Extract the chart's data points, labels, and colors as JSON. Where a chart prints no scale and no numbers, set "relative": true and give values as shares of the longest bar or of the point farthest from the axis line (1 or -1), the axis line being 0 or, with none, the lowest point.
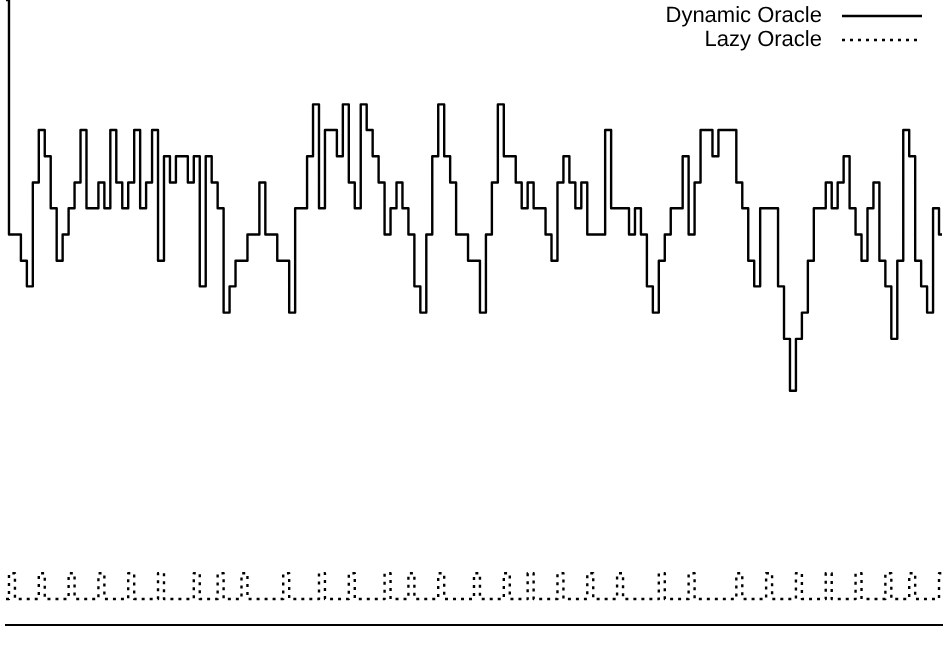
{
  "chart_data": {
    "type": "step",
    "relative": true,
    "legend": "top right",
    "grid": false,
    "categories": [
      null,
      null,
      null,
      null,
      null,
      null,
      null,
      null,
      null,
      null,
      null,
      null,
      null,
      null,
      null,
      null,
      null,
      null,
      null,
      null,
      null,
      null,
      null,
      null,
      null,
      null,
      null,
      null,
      null,
      null,
      null,
      null,
      null,
      null,
      null,
      null,
      null,
      null,
      null,
      null,
      null,
      null,
      null,
      null,
      null,
      null,
      null,
      null,
      null,
      null,
      null,
      null,
      null,
      null,
      null,
      null,
      null,
      null,
      null,
      null,
      null,
      null,
      null,
      null,
      null,
      null,
      null,
      null,
      null,
      null,
      null,
      null,
      null,
      null,
      null,
      null,
      null,
      null,
      null,
      null,
      null,
      null,
      null,
      null,
      null,
      null,
      null,
      null,
      null,
      null,
      null,
      null,
      null,
      null,
      null,
      null,
      null,
      null,
      null,
      null,
      null,
      null,
      null,
      null,
      null,
      null,
      null,
      null,
      null,
      null,
      null,
      null,
      null,
      null,
      null,
      null,
      null,
      null,
      null,
      null,
      null,
      null,
      null,
      null,
      null,
      null,
      null,
      null,
      null,
      null,
      null,
      null,
      null,
      null,
      null,
      null,
      null,
      null,
      null,
      null,
      null,
      null,
      null,
      null,
      null,
      null,
      null,
      null,
      null,
      null,
      null,
      null,
      null,
      null,
      null,
      null,
      null,
      null
    ],
    "series": [
      {
        "name": "Dynamic Oracle",
        "color": "#000000",
        "line_style": "solid",
        "values": [
          1,
          0.625,
          0.625,
          0.583,
          0.542,
          0.708,
          0.792,
          0.75,
          0.667,
          0.583,
          0.625,
          0.667,
          0.708,
          0.792,
          0.667,
          0.667,
          0.708,
          0.667,
          0.792,
          0.708,
          0.667,
          0.708,
          0.792,
          0.667,
          0.708,
          0.792,
          0.583,
          0.75,
          0.708,
          0.75,
          0.75,
          0.708,
          0.75,
          0.542,
          0.75,
          0.708,
          0.667,
          0.5,
          0.542,
          0.583,
          0.583,
          0.625,
          0.625,
          0.708,
          0.625,
          0.625,
          0.583,
          0.583,
          0.5,
          0.667,
          0.667,
          0.75,
          0.833,
          0.667,
          0.792,
          0.792,
          0.75,
          0.833,
          0.708,
          0.667,
          0.833,
          0.792,
          0.75,
          0.708,
          0.625,
          0.667,
          0.708,
          0.667,
          0.625,
          0.542,
          0.5,
          0.625,
          0.75,
          0.833,
          0.75,
          0.708,
          0.625,
          0.625,
          0.583,
          0.583,
          0.5,
          0.625,
          0.708,
          0.833,
          0.75,
          0.75,
          0.708,
          0.667,
          0.708,
          0.667,
          0.667,
          0.625,
          0.583,
          0.708,
          0.75,
          0.708,
          0.667,
          0.708,
          0.625,
          0.625,
          0.625,
          0.792,
          0.667,
          0.667,
          0.667,
          0.625,
          0.667,
          0.625,
          0.542,
          0.5,
          0.583,
          0.625,
          0.667,
          0.667,
          0.75,
          0.625,
          0.708,
          0.792,
          0.792,
          0.75,
          0.792,
          0.792,
          0.792,
          0.708,
          0.667,
          0.583,
          0.542,
          0.667,
          0.667,
          0.667,
          0.542,
          0.458,
          0.375,
          0.458,
          0.5,
          0.583,
          0.667,
          0.667,
          0.708,
          0.667,
          0.708,
          0.75,
          0.667,
          0.625,
          0.583,
          0.667,
          0.708,
          0.583,
          0.542,
          0.458,
          0.583,
          0.792,
          0.75,
          0.583,
          0.542,
          0.5,
          0.667,
          0.625
        ]
      },
      {
        "name": "Lazy Oracle",
        "color": "#000000",
        "line_style": "dotted",
        "values": [
          0.042,
          0.083,
          0.042,
          0.042,
          0.042,
          0.042,
          0.083,
          0.042,
          0.042,
          0.042,
          0.042,
          0.083,
          0.042,
          0.042,
          0.042,
          0.042,
          0.083,
          0.042,
          0.042,
          0.042,
          0.042,
          0.083,
          0.042,
          0.042,
          0.042,
          0.042,
          0.083,
          0.042,
          0.042,
          0.042,
          0.042,
          0.042,
          0.083,
          0.042,
          0.042,
          0.042,
          0.083,
          0.042,
          0.042,
          0.042,
          0.083,
          0.042,
          0.042,
          0.042,
          0.042,
          0.042,
          0.042,
          0.083,
          0.042,
          0.042,
          0.042,
          0.042,
          0.042,
          0.083,
          0.042,
          0.042,
          0.042,
          0.042,
          0.083,
          0.042,
          0.042,
          0.042,
          0.042,
          0.042,
          0.083,
          0.042,
          0.042,
          0.042,
          0.083,
          0.042,
          0.042,
          0.042,
          0.042,
          0.083,
          0.042,
          0.042,
          0.042,
          0.042,
          0.042,
          0.083,
          0.042,
          0.042,
          0.042,
          0.042,
          0.083,
          0.042,
          0.042,
          0.042,
          0.083,
          0.042,
          0.042,
          0.042,
          0.042,
          0.083,
          0.042,
          0.042,
          0.042,
          0.042,
          0.083,
          0.042,
          0.042,
          0.042,
          0.042,
          0.083,
          0.042,
          0.042,
          0.042,
          0.042,
          0.042,
          0.042,
          0.083,
          0.042,
          0.042,
          0.042,
          0.042,
          0.083,
          0.042,
          0.042,
          0.042,
          0.042,
          0.042,
          0.042,
          0.042,
          0.083,
          0.042,
          0.042,
          0.042,
          0.042,
          0.083,
          0.042,
          0.042,
          0.042,
          0.042,
          0.083,
          0.042,
          0.042,
          0.042,
          0.042,
          0.083,
          0.042,
          0.042,
          0.042,
          0.042,
          0.083,
          0.042,
          0.042,
          0.042,
          0.042,
          0.083,
          0.042,
          0.042,
          0.042,
          0.083,
          0.042,
          0.042,
          0.042,
          0.042,
          0.083
        ]
      }
    ]
  }
}
